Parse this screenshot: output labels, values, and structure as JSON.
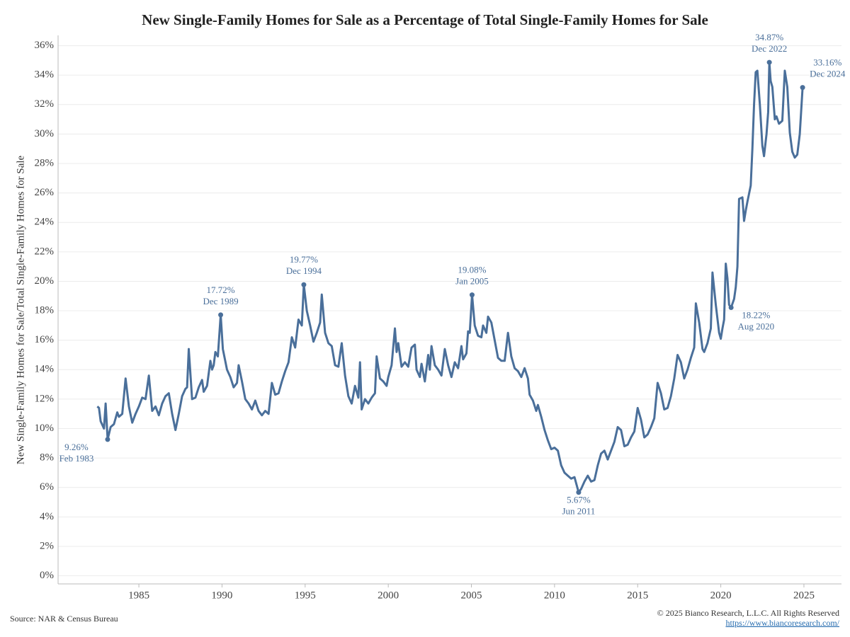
{
  "chart_data": {
    "type": "line",
    "title": "New Single-Family Homes for Sale as a Percentage of Total Single-Family Homes for Sale",
    "y_label": "New Single-Family Homes for Sale/Total Single-Family Homes for Sale",
    "source": "Source: NAR & Census Bureau",
    "copyright": "© 2025 Bianco Research, L.L.C. All Rights Reserved",
    "url": "https://www.biancoresearch.com/",
    "grid": true,
    "xlim": [
      1980.14,
      2027.26
    ],
    "xticks": [
      1985,
      1990,
      1995,
      2000,
      2005,
      2010,
      2015,
      2020,
      2025
    ],
    "ylim": [
      -0.55,
      36.7
    ],
    "yticks": [
      {
        "value": 0,
        "label": "0%"
      },
      {
        "value": 2,
        "label": "2%"
      },
      {
        "value": 4,
        "label": "4%"
      },
      {
        "value": 6,
        "label": "6%"
      },
      {
        "value": 8,
        "label": "8%"
      },
      {
        "value": 10,
        "label": "10%"
      },
      {
        "value": 12,
        "label": "12%"
      },
      {
        "value": 14,
        "label": "14%"
      },
      {
        "value": 16,
        "label": "16%"
      },
      {
        "value": 18,
        "label": "18%"
      },
      {
        "value": 20,
        "label": "20%"
      },
      {
        "value": 22,
        "label": "22%"
      },
      {
        "value": 24,
        "label": "24%"
      },
      {
        "value": 26,
        "label": "26%"
      },
      {
        "value": 28,
        "label": "28%"
      },
      {
        "value": 30,
        "label": "30%"
      },
      {
        "value": 32,
        "label": "32%"
      },
      {
        "value": 34,
        "label": "34%"
      },
      {
        "value": 36,
        "label": "36%"
      }
    ],
    "series": [
      {
        "color": "#4a6f9a",
        "x": [
          1982.5,
          1982.6,
          1982.7,
          1982.9,
          1983.0,
          1983.12,
          1983.3,
          1983.5,
          1983.7,
          1983.8,
          1984.0,
          1984.2,
          1984.4,
          1984.6,
          1984.8,
          1985.0,
          1985.2,
          1985.4,
          1985.6,
          1985.8,
          1986.0,
          1986.2,
          1986.4,
          1986.6,
          1986.8,
          1987.0,
          1987.2,
          1987.4,
          1987.6,
          1987.8,
          1987.9,
          1988.0,
          1988.2,
          1988.4,
          1988.6,
          1988.8,
          1988.9,
          1989.1,
          1989.3,
          1989.4,
          1989.5,
          1989.6,
          1989.75,
          1989.92,
          1990.05,
          1990.3,
          1990.5,
          1990.7,
          1990.9,
          1991.0,
          1991.2,
          1991.4,
          1991.6,
          1991.8,
          1992.0,
          1992.2,
          1992.4,
          1992.6,
          1992.8,
          1993.0,
          1993.2,
          1993.4,
          1993.6,
          1993.8,
          1994.0,
          1994.2,
          1994.4,
          1994.6,
          1994.8,
          1994.92,
          1995.1,
          1995.3,
          1995.5,
          1995.7,
          1995.9,
          1996.0,
          1996.2,
          1996.4,
          1996.6,
          1996.8,
          1997.0,
          1997.2,
          1997.4,
          1997.6,
          1997.8,
          1998.0,
          1998.2,
          1998.3,
          1998.4,
          1998.6,
          1998.8,
          1999.0,
          1999.2,
          1999.3,
          1999.5,
          1999.7,
          1999.9,
          2000.0,
          2000.2,
          2000.4,
          2000.5,
          2000.6,
          2000.8,
          2001.0,
          2001.2,
          2001.4,
          2001.6,
          2001.7,
          2001.9,
          2002.0,
          2002.2,
          2002.4,
          2002.5,
          2002.6,
          2002.8,
          2003.0,
          2003.2,
          2003.4,
          2003.6,
          2003.8,
          2004.0,
          2004.2,
          2004.4,
          2004.5,
          2004.7,
          2004.8,
          2004.9,
          2005.04,
          2005.2,
          2005.4,
          2005.6,
          2005.7,
          2005.9,
          2006.0,
          2006.2,
          2006.4,
          2006.6,
          2006.8,
          2007.0,
          2007.2,
          2007.4,
          2007.6,
          2007.8,
          2008.0,
          2008.2,
          2008.4,
          2008.5,
          2008.7,
          2008.9,
          2009.0,
          2009.2,
          2009.4,
          2009.6,
          2009.8,
          2010.0,
          2010.2,
          2010.4,
          2010.6,
          2010.8,
          2011.0,
          2011.2,
          2011.45,
          2011.6,
          2011.8,
          2012.0,
          2012.2,
          2012.4,
          2012.6,
          2012.8,
          2013.0,
          2013.2,
          2013.4,
          2013.6,
          2013.8,
          2014.0,
          2014.2,
          2014.4,
          2014.6,
          2014.8,
          2015.0,
          2015.2,
          2015.4,
          2015.6,
          2015.8,
          2016.0,
          2016.2,
          2016.4,
          2016.6,
          2016.8,
          2017.0,
          2017.2,
          2017.4,
          2017.6,
          2017.8,
          2018.0,
          2018.2,
          2018.4,
          2018.5,
          2018.7,
          2018.9,
          2019.0,
          2019.2,
          2019.4,
          2019.5,
          2019.7,
          2019.9,
          2020.0,
          2020.1,
          2020.2,
          2020.3,
          2020.4,
          2020.5,
          2020.62,
          2020.8,
          2020.9,
          2021.0,
          2021.1,
          2021.3,
          2021.4,
          2021.5,
          2021.6,
          2021.8,
          2021.9,
          2022.0,
          2022.1,
          2022.2,
          2022.35,
          2022.5,
          2022.6,
          2022.75,
          2022.85,
          2022.92,
          2023.0,
          2023.1,
          2023.25,
          2023.35,
          2023.5,
          2023.7,
          2023.85,
          2024.0,
          2024.15,
          2024.3,
          2024.45,
          2024.6,
          2024.75,
          2024.92
        ],
        "values": [
          11.5,
          11.4,
          10.5,
          10.0,
          11.7,
          9.26,
          10.1,
          10.3,
          11.1,
          10.8,
          11.0,
          13.4,
          11.5,
          10.4,
          11.0,
          11.5,
          12.1,
          12.0,
          13.6,
          11.2,
          11.5,
          10.9,
          11.7,
          12.2,
          12.4,
          11.0,
          9.9,
          11.0,
          12.2,
          12.7,
          12.8,
          15.4,
          12.0,
          12.1,
          12.8,
          13.3,
          12.5,
          12.9,
          14.6,
          14.0,
          14.3,
          15.2,
          14.9,
          17.72,
          15.4,
          14.0,
          13.5,
          12.8,
          13.1,
          14.3,
          13.2,
          12.0,
          11.7,
          11.3,
          11.9,
          11.2,
          10.9,
          11.2,
          11.0,
          13.1,
          12.3,
          12.4,
          13.2,
          13.9,
          14.5,
          16.2,
          15.5,
          17.4,
          17.0,
          19.77,
          18.0,
          17.0,
          15.9,
          16.5,
          17.2,
          19.1,
          16.5,
          15.8,
          15.6,
          14.3,
          14.2,
          15.8,
          13.6,
          12.2,
          11.7,
          12.9,
          12.1,
          14.5,
          11.3,
          12.0,
          11.7,
          12.1,
          12.4,
          14.9,
          13.4,
          13.2,
          12.9,
          13.5,
          14.3,
          16.8,
          15.2,
          15.8,
          14.2,
          14.5,
          14.2,
          15.5,
          15.7,
          14.0,
          13.5,
          14.4,
          13.2,
          15.0,
          14.0,
          15.6,
          14.3,
          14.0,
          13.6,
          15.4,
          14.3,
          13.5,
          14.5,
          14.1,
          15.6,
          14.7,
          15.1,
          16.6,
          16.5,
          19.08,
          17.0,
          16.3,
          16.2,
          17.0,
          16.5,
          17.6,
          17.2,
          16.0,
          14.8,
          14.6,
          14.6,
          16.5,
          14.9,
          14.1,
          13.9,
          13.5,
          14.1,
          13.4,
          12.3,
          11.9,
          11.2,
          11.6,
          10.8,
          9.9,
          9.2,
          8.6,
          8.7,
          8.5,
          7.5,
          7.0,
          6.8,
          6.6,
          6.7,
          5.67,
          5.9,
          6.4,
          6.8,
          6.4,
          6.5,
          7.5,
          8.3,
          8.5,
          7.9,
          8.5,
          9.1,
          10.1,
          9.9,
          8.8,
          8.9,
          9.4,
          9.8,
          11.4,
          10.6,
          9.4,
          9.6,
          10.1,
          10.7,
          13.1,
          12.4,
          11.3,
          11.4,
          12.2,
          13.4,
          15.0,
          14.5,
          13.4,
          14.0,
          14.8,
          15.5,
          18.5,
          17.2,
          15.4,
          15.2,
          15.8,
          16.8,
          20.6,
          18.4,
          16.5,
          16.1,
          16.8,
          17.4,
          21.2,
          20.2,
          18.4,
          18.22,
          18.8,
          19.6,
          21.0,
          25.6,
          25.7,
          24.1,
          24.8,
          25.4,
          26.5,
          29.0,
          32.0,
          34.2,
          34.3,
          32.0,
          29.2,
          28.5,
          30.0,
          31.5,
          34.87,
          33.6,
          33.2,
          31.0,
          31.2,
          30.7,
          30.9,
          34.3,
          33.2,
          30.1,
          28.8,
          28.4,
          28.6,
          30.0,
          33.16
        ]
      }
    ],
    "annotations": [
      {
        "x": 1983.12,
        "y": 9.26,
        "label": "9.26%",
        "date": "Feb 1983"
      },
      {
        "x": 1989.92,
        "y": 17.72,
        "label": "17.72%",
        "date": "Dec 1989"
      },
      {
        "x": 1994.92,
        "y": 19.77,
        "label": "19.77%",
        "date": "Dec 1994"
      },
      {
        "x": 2005.04,
        "y": 19.08,
        "label": "19.08%",
        "date": "Jan 2005"
      },
      {
        "x": 2011.45,
        "y": 5.67,
        "label": "5.67%",
        "date": "Jun 2011"
      },
      {
        "x": 2020.62,
        "y": 18.22,
        "label": "18.22%",
        "date": "Aug 2020"
      },
      {
        "x": 2022.92,
        "y": 34.87,
        "label": "34.87%",
        "date": "Dec 2022"
      },
      {
        "x": 2024.92,
        "y": 33.16,
        "label": "33.16%",
        "date": "Dec 2024"
      }
    ]
  }
}
